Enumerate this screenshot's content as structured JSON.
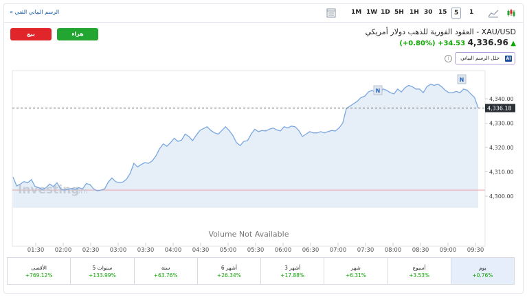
{
  "toolbar": {
    "full_chart_link": "الرسم البياني الفني »",
    "timeframes": [
      "1M",
      "1W",
      "1D",
      "5H",
      "1H",
      "30",
      "15",
      "5",
      "1"
    ],
    "active_timeframe": "5"
  },
  "trade": {
    "sell_label": "بيع",
    "buy_label": "هراء"
  },
  "instrument": {
    "title": "XAU/USD - العقود الفورية للذهب دولار أمريكي",
    "price": "4,336.96",
    "change": "+34.53",
    "change_pct": "(+0.80%)"
  },
  "ai": {
    "badge": "AI",
    "label": "حلل الرسم البياني"
  },
  "chart_data": {
    "type": "area",
    "title": "",
    "ylim": [
      4295,
      4348
    ],
    "y_ticks": [
      "4,340.00",
      "4,330.00",
      "4,320.00",
      "4,310.00",
      "4,300.00"
    ],
    "y_tick_values": [
      4340,
      4330,
      4320,
      4310,
      4300
    ],
    "x_ticks": [
      "01:30",
      "02:00",
      "02:30",
      "03:00",
      "03:30",
      "04:00",
      "04:30",
      "05:00",
      "05:30",
      "06:00",
      "06:30",
      "07:00",
      "07:30",
      "08:00",
      "08:30",
      "09:00",
      "09:30"
    ],
    "last_price_label": "4,336.18",
    "last_price": 4336.18,
    "previous_close": 4302.5,
    "volume_note": "Volume Not Available",
    "watermark": "Investing",
    "watermark_suffix": ".com",
    "news_marker": "N",
    "series": [
      {
        "values": [
          4307.8,
          4304.2,
          4305.0,
          4306.0,
          4305.5,
          4306.8,
          4304.0,
          4303.5,
          4302.8,
          4303.5,
          4305.0,
          4304.0,
          4305.5,
          4303.0,
          4302.5,
          4302.8,
          4303.2,
          4302.8,
          4303.5,
          4303.0,
          4305.2,
          4304.8,
          4303.0,
          4302.2,
          4302.5,
          4303.0,
          4305.8,
          4307.5,
          4306.0,
          4305.5,
          4305.8,
          4307.0,
          4309.5,
          4313.5,
          4312.0,
          4313.0,
          4313.8,
          4313.5,
          4314.5,
          4316.5,
          4319.5,
          4321.5,
          4320.5,
          4322.0,
          4323.8,
          4322.5,
          4323.0,
          4325.5,
          4324.5,
          4322.8,
          4325.0,
          4327.0,
          4327.8,
          4328.5,
          4327.0,
          4326.0,
          4325.5,
          4327.0,
          4328.5,
          4327.0,
          4325.0,
          4322.0,
          4320.8,
          4322.5,
          4322.8,
          4325.5,
          4327.5,
          4326.5,
          4327.0,
          4326.8,
          4327.5,
          4328.0,
          4327.2,
          4326.8,
          4328.5,
          4328.0,
          4328.8,
          4328.5,
          4327.0,
          4324.5,
          4325.5,
          4326.5,
          4326.0,
          4326.0,
          4326.5,
          4326.0,
          4326.5,
          4327.0,
          4326.8,
          4328.0,
          4330.0,
          4336.0,
          4337.0,
          4338.0,
          4339.0,
          4340.5,
          4341.0,
          4342.8,
          4343.5,
          4342.5,
          4341.8,
          4344.0,
          4343.5,
          4342.5,
          4342.0,
          4344.0,
          4342.8,
          4344.5,
          4345.5,
          4345.0,
          4344.0,
          4344.0,
          4342.5,
          4345.0,
          4346.0,
          4345.5,
          4346.0,
          4345.0,
          4343.5,
          4342.5,
          4342.5,
          4343.0,
          4342.5,
          4344.0,
          4343.5,
          4342.0,
          4340.5,
          4336.2
        ]
      }
    ]
  },
  "periods": [
    {
      "label": "الأقصى",
      "value": "+769.12%"
    },
    {
      "label": "5 سنوات",
      "value": "+133.99%"
    },
    {
      "label": "سنة",
      "value": "+63.76%"
    },
    {
      "label": "6 أشهر",
      "value": "+26.34%"
    },
    {
      "label": "3 أشهر",
      "value": "+17.88%"
    },
    {
      "label": "شهر",
      "value": "+6.31%"
    },
    {
      "label": "أسبوع",
      "value": "+3.53%"
    },
    {
      "label": "يوم",
      "value": "+0.76%"
    }
  ],
  "active_period": "يوم",
  "colors": {
    "line": "#7aa7e0",
    "area": "#e6eef8",
    "up": "#0ea600",
    "sell": "#e0262a",
    "buy": "#23a532",
    "prev_close": "#e8a3a8"
  }
}
